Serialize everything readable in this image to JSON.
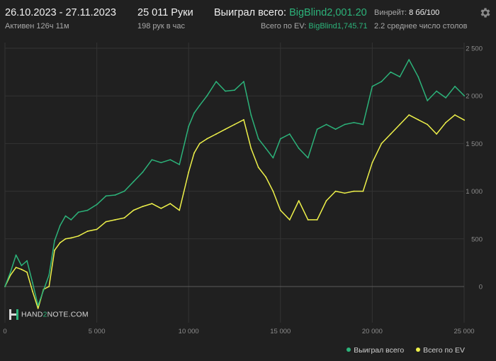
{
  "header": {
    "date_range": "26.10.2023 - 27.11.2023",
    "active": "Активен 126ч 11м",
    "hands": "25 011 Руки",
    "hands_rate": "198 рук в час",
    "won_total_label": "Выиграл всего:",
    "won_total_value": "BigBlind2,001.20",
    "ev_total_label": "Всего по EV:",
    "ev_total_value": "BigBlind1,745.71",
    "winrate_label": "Винрейт:",
    "winrate_value": "8 бб/100",
    "tables_avg": "2.2 среднее число столов"
  },
  "logo": {
    "prefix": "HAND",
    "mid": "2",
    "suffix": "NOTE.COM"
  },
  "colors": {
    "won": "#2cb37a",
    "ev": "#eef14a",
    "background": "#202020",
    "grid": "#333333"
  },
  "icons": {
    "settings": "gear-icon",
    "logo": "hand2note-logo-icon"
  },
  "chart_data": {
    "type": "line",
    "title": "",
    "xlabel": "",
    "ylabel": "",
    "xlim": [
      0,
      25000
    ],
    "ylim": [
      -250,
      2500
    ],
    "x_ticks": [
      0,
      5000,
      10000,
      15000,
      20000,
      25000
    ],
    "x_tick_labels": [
      "0",
      "5 000",
      "10 000",
      "15 000",
      "20 000",
      "25 000"
    ],
    "y_ticks": [
      0,
      500,
      1000,
      1500,
      2000,
      2500
    ],
    "y_tick_labels": [
      "0",
      "500",
      "1 000",
      "1 500",
      "2 000",
      "2 500"
    ],
    "grid": true,
    "legend_position": "bottom-right",
    "series": [
      {
        "name": "Выиграл всего",
        "color": "#2cb37a",
        "x": [
          0,
          300,
          600,
          900,
          1200,
          1500,
          1800,
          2100,
          2400,
          2700,
          3000,
          3300,
          3600,
          4000,
          4500,
          5000,
          5500,
          6000,
          6500,
          7000,
          7500,
          8000,
          8500,
          9000,
          9500,
          10000,
          10300,
          10600,
          11000,
          11500,
          12000,
          12500,
          13000,
          13400,
          13800,
          14200,
          14600,
          15000,
          15500,
          16000,
          16500,
          17000,
          17500,
          18000,
          18500,
          19000,
          19500,
          20000,
          20500,
          21000,
          21500,
          22000,
          22500,
          23000,
          23500,
          24000,
          24500,
          25011
        ],
        "values": [
          0,
          150,
          330,
          220,
          270,
          40,
          -200,
          -40,
          120,
          480,
          640,
          740,
          700,
          780,
          800,
          860,
          950,
          960,
          1000,
          1100,
          1200,
          1330,
          1300,
          1330,
          1280,
          1680,
          1820,
          1900,
          2000,
          2150,
          2050,
          2060,
          2150,
          1800,
          1550,
          1450,
          1350,
          1550,
          1600,
          1450,
          1350,
          1650,
          1700,
          1650,
          1700,
          1720,
          1700,
          2100,
          2150,
          2250,
          2200,
          2380,
          2200,
          1950,
          2050,
          1980,
          2100,
          2001
        ]
      },
      {
        "name": "Всего по EV",
        "color": "#eef14a",
        "x": [
          0,
          300,
          600,
          900,
          1200,
          1500,
          1800,
          2100,
          2400,
          2700,
          3000,
          3300,
          3600,
          4000,
          4500,
          5000,
          5500,
          6000,
          6500,
          7000,
          7500,
          8000,
          8500,
          9000,
          9500,
          10000,
          10300,
          10600,
          11000,
          11500,
          12000,
          12500,
          13000,
          13400,
          13800,
          14200,
          14600,
          15000,
          15500,
          16000,
          16500,
          17000,
          17500,
          18000,
          18500,
          19000,
          19500,
          20000,
          20500,
          21000,
          21500,
          22000,
          22500,
          23000,
          23500,
          24000,
          24500,
          25011
        ],
        "values": [
          0,
          120,
          200,
          180,
          150,
          -50,
          -230,
          -30,
          0,
          380,
          460,
          500,
          510,
          530,
          580,
          600,
          680,
          700,
          720,
          800,
          840,
          870,
          820,
          870,
          800,
          1200,
          1400,
          1500,
          1550,
          1600,
          1650,
          1700,
          1750,
          1450,
          1250,
          1150,
          1000,
          800,
          700,
          900,
          700,
          700,
          900,
          1000,
          980,
          1000,
          1000,
          1300,
          1500,
          1600,
          1700,
          1800,
          1750,
          1700,
          1600,
          1720,
          1800,
          1746
        ]
      }
    ]
  }
}
